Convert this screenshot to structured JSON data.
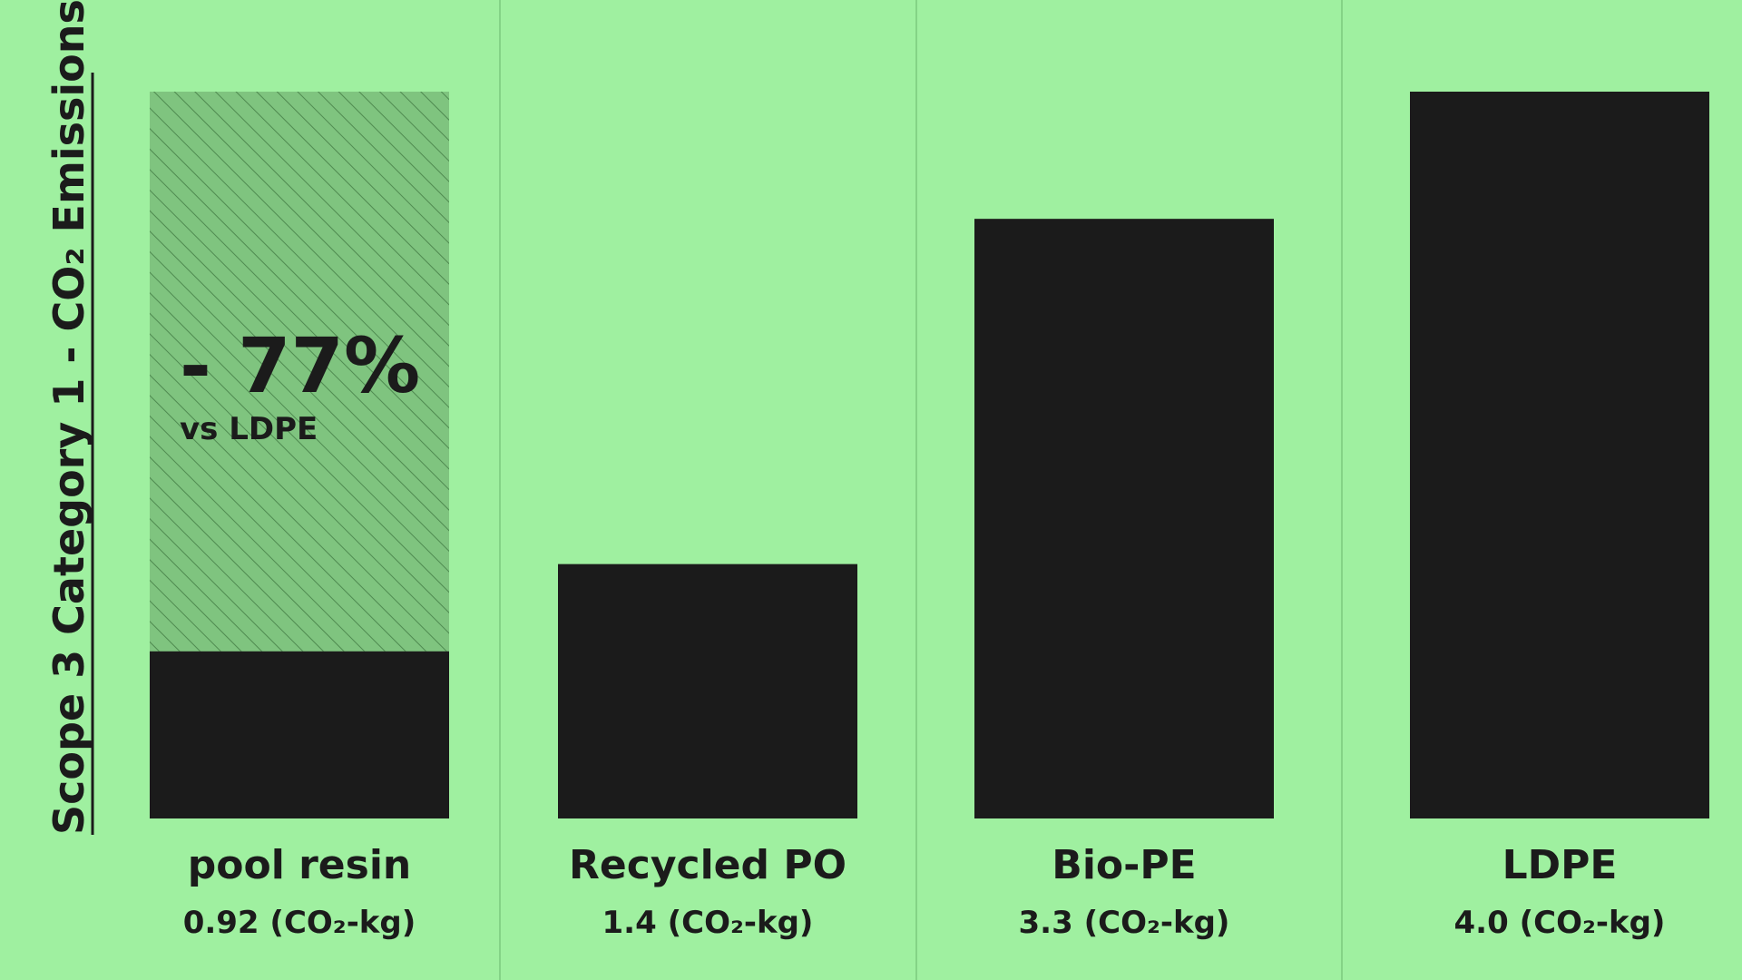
{
  "chart_data": {
    "type": "bar",
    "title": "",
    "ylabel": "Scope 3 Category 1 - CO₂ Emissions",
    "xlabel": "",
    "categories": [
      "pool resin",
      "Recycled PO",
      "Bio-PE",
      "LDPE"
    ],
    "values": [
      0.92,
      1.4,
      3.3,
      4.0
    ],
    "value_labels": [
      "0.92 (CO₂-kg)",
      "1.4 (CO₂-kg)",
      "3.3 (CO₂-kg)",
      "4.0 (CO₂-kg)"
    ],
    "ylim": [
      0,
      4.0
    ],
    "grid": false,
    "reduction_reference": {
      "category": "pool resin",
      "reference_value": 4.0,
      "main_text": "- 77%",
      "sub_text": "vs LDPE"
    },
    "colors": {
      "background": "#9ff0a0",
      "bar": "#1b1b1b",
      "hatch_fill": "#7fc47f",
      "hatch_line": "#4f8a50",
      "divider": "#7cc97e"
    }
  }
}
